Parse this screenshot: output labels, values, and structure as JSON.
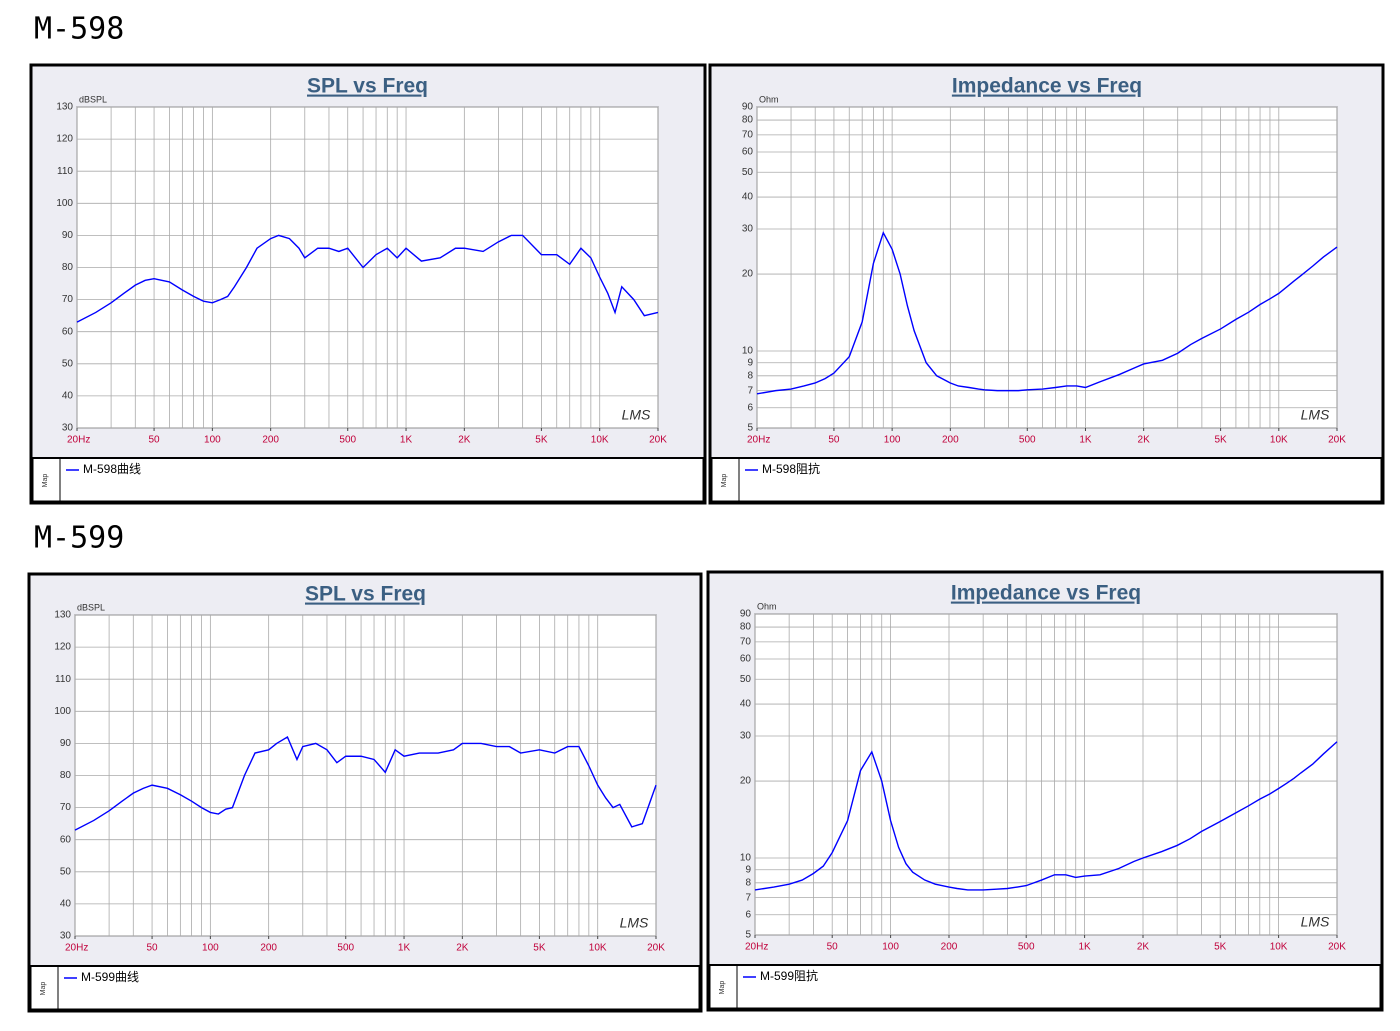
{
  "headings": [
    "M-598",
    "M-599"
  ],
  "chart_data": [
    {
      "type": "line",
      "title": "SPL vs Freq",
      "y_label": "dBSPL",
      "watermark": "LMS",
      "legend_side_label": "Map",
      "xscale": "log",
      "yscale": "linear",
      "grid": true,
      "xlim": [
        20,
        20000
      ],
      "ylim": [
        30,
        130
      ],
      "xticks": [
        {
          "value": 20,
          "label": "20Hz"
        },
        50,
        100,
        200,
        500,
        {
          "value": 1000,
          "label": "1K"
        },
        {
          "value": 2000,
          "label": "2K"
        },
        {
          "value": 5000,
          "label": "5K"
        },
        {
          "value": 10000,
          "label": "10K"
        },
        {
          "value": 20000,
          "label": "20K"
        }
      ],
      "xgrid": [
        20,
        30,
        40,
        50,
        60,
        70,
        80,
        90,
        100,
        200,
        300,
        400,
        500,
        600,
        700,
        800,
        900,
        1000,
        2000,
        3000,
        4000,
        5000,
        6000,
        7000,
        8000,
        9000,
        10000,
        20000
      ],
      "yticks": [
        30,
        40,
        50,
        60,
        70,
        80,
        90,
        100,
        110,
        120,
        130
      ],
      "x": [
        20,
        25,
        30,
        35,
        40,
        45,
        50,
        60,
        70,
        80,
        90,
        100,
        110,
        120,
        130,
        150,
        170,
        200,
        220,
        250,
        280,
        300,
        350,
        400,
        450,
        500,
        600,
        700,
        800,
        900,
        1000,
        1200,
        1500,
        1800,
        2000,
        2500,
        3000,
        3500,
        4000,
        5000,
        6000,
        7000,
        8000,
        9000,
        10000,
        11000,
        12000,
        13000,
        15000,
        17000,
        20000
      ],
      "series": [
        {
          "name": "M-598曲线",
          "color": "#0000ff",
          "values": [
            63,
            66,
            69,
            72,
            74.5,
            76,
            76.5,
            75.5,
            73,
            71,
            69.5,
            69,
            70,
            71,
            74,
            80,
            86,
            89,
            90,
            89,
            86,
            83,
            86,
            86,
            85,
            86,
            80,
            84,
            86,
            83,
            86,
            82,
            83,
            86,
            86,
            85,
            88,
            90,
            90,
            84,
            84,
            81,
            86,
            83,
            77,
            72,
            66,
            74,
            70,
            65,
            66
          ]
        }
      ]
    },
    {
      "type": "line",
      "title": "Impedance vs Freq",
      "y_label": "Ohm",
      "watermark": "LMS",
      "legend_side_label": "Map",
      "xscale": "log",
      "yscale": "log",
      "grid": true,
      "xlim": [
        20,
        20000
      ],
      "ylim": [
        5,
        90
      ],
      "xticks": [
        {
          "value": 20,
          "label": "20Hz"
        },
        50,
        100,
        200,
        500,
        {
          "value": 1000,
          "label": "1K"
        },
        {
          "value": 2000,
          "label": "2K"
        },
        {
          "value": 5000,
          "label": "5K"
        },
        {
          "value": 10000,
          "label": "10K"
        },
        {
          "value": 20000,
          "label": "20K"
        }
      ],
      "xgrid": [
        20,
        30,
        40,
        50,
        60,
        70,
        80,
        90,
        100,
        200,
        300,
        400,
        500,
        600,
        700,
        800,
        900,
        1000,
        2000,
        3000,
        4000,
        5000,
        6000,
        7000,
        8000,
        9000,
        10000,
        20000
      ],
      "yticks": [
        5,
        6,
        7,
        8,
        9,
        10,
        20,
        30,
        40,
        50,
        60,
        70,
        80,
        90
      ],
      "x": [
        20,
        25,
        30,
        35,
        40,
        45,
        50,
        60,
        70,
        80,
        90,
        100,
        110,
        120,
        130,
        150,
        170,
        200,
        220,
        250,
        280,
        300,
        350,
        400,
        450,
        500,
        600,
        700,
        800,
        900,
        1000,
        1200,
        1500,
        1800,
        2000,
        2500,
        3000,
        3500,
        4000,
        5000,
        6000,
        7000,
        8000,
        9000,
        10000,
        11000,
        12000,
        13000,
        15000,
        17000,
        20000
      ],
      "series": [
        {
          "name": "M-598阻抗",
          "color": "#0000ff",
          "values": [
            6.8,
            7,
            7.1,
            7.3,
            7.5,
            7.8,
            8.2,
            9.5,
            13,
            22,
            29,
            25,
            20,
            15,
            12,
            9,
            8,
            7.5,
            7.3,
            7.2,
            7.1,
            7.05,
            7,
            7,
            7,
            7.05,
            7.1,
            7.2,
            7.3,
            7.3,
            7.2,
            7.6,
            8.1,
            8.6,
            8.9,
            9.2,
            9.8,
            10.6,
            11.2,
            12.2,
            13.3,
            14.2,
            15.2,
            16,
            16.8,
            17.8,
            18.8,
            19.7,
            21.5,
            23.3,
            25.5
          ]
        }
      ]
    },
    {
      "type": "line",
      "title": "SPL vs Freq",
      "y_label": "dBSPL",
      "watermark": "LMS",
      "legend_side_label": "Map",
      "xscale": "log",
      "yscale": "linear",
      "grid": true,
      "xlim": [
        20,
        20000
      ],
      "ylim": [
        30,
        130
      ],
      "xticks": [
        {
          "value": 20,
          "label": "20Hz"
        },
        50,
        100,
        200,
        500,
        {
          "value": 1000,
          "label": "1K"
        },
        {
          "value": 2000,
          "label": "2K"
        },
        {
          "value": 5000,
          "label": "5K"
        },
        {
          "value": 10000,
          "label": "10K"
        },
        {
          "value": 20000,
          "label": "20K"
        }
      ],
      "xgrid": [
        20,
        30,
        40,
        50,
        60,
        70,
        80,
        90,
        100,
        200,
        300,
        400,
        500,
        600,
        700,
        800,
        900,
        1000,
        2000,
        3000,
        4000,
        5000,
        6000,
        7000,
        8000,
        9000,
        10000,
        20000
      ],
      "yticks": [
        30,
        40,
        50,
        60,
        70,
        80,
        90,
        100,
        110,
        120,
        130
      ],
      "x": [
        20,
        25,
        30,
        35,
        40,
        45,
        50,
        60,
        70,
        80,
        90,
        100,
        110,
        120,
        130,
        150,
        170,
        200,
        220,
        250,
        280,
        300,
        350,
        400,
        450,
        500,
        600,
        700,
        800,
        900,
        1000,
        1200,
        1500,
        1800,
        2000,
        2500,
        3000,
        3500,
        4000,
        5000,
        6000,
        7000,
        8000,
        9000,
        10000,
        11000,
        12000,
        13000,
        15000,
        17000,
        20000
      ],
      "series": [
        {
          "name": "M-599曲线",
          "color": "#0000ff",
          "values": [
            63,
            66,
            69,
            72,
            74.5,
            76,
            77,
            76,
            74,
            72,
            70,
            68.5,
            68,
            69.5,
            70,
            80,
            87,
            88,
            90,
            92,
            85,
            89,
            90,
            88,
            84,
            86,
            86,
            85,
            81,
            88,
            86,
            87,
            87,
            88,
            90,
            90,
            89,
            89,
            87,
            88,
            87,
            89,
            89,
            83,
            77,
            73,
            70,
            71,
            64,
            65,
            77
          ]
        }
      ]
    },
    {
      "type": "line",
      "title": "Impedance vs Freq",
      "y_label": "Ohm",
      "watermark": "LMS",
      "legend_side_label": "Map",
      "xscale": "log",
      "yscale": "log",
      "grid": true,
      "xlim": [
        20,
        20000
      ],
      "ylim": [
        5,
        90
      ],
      "xticks": [
        {
          "value": 20,
          "label": "20Hz"
        },
        50,
        100,
        200,
        500,
        {
          "value": 1000,
          "label": "1K"
        },
        {
          "value": 2000,
          "label": "2K"
        },
        {
          "value": 5000,
          "label": "5K"
        },
        {
          "value": 10000,
          "label": "10K"
        },
        {
          "value": 20000,
          "label": "20K"
        }
      ],
      "xgrid": [
        20,
        30,
        40,
        50,
        60,
        70,
        80,
        90,
        100,
        200,
        300,
        400,
        500,
        600,
        700,
        800,
        900,
        1000,
        2000,
        3000,
        4000,
        5000,
        6000,
        7000,
        8000,
        9000,
        10000,
        20000
      ],
      "yticks": [
        5,
        6,
        7,
        8,
        9,
        10,
        20,
        30,
        40,
        50,
        60,
        70,
        80,
        90
      ],
      "x": [
        20,
        25,
        30,
        35,
        40,
        45,
        50,
        60,
        70,
        80,
        90,
        100,
        110,
        120,
        130,
        150,
        170,
        200,
        220,
        250,
        280,
        300,
        350,
        400,
        450,
        500,
        600,
        700,
        800,
        900,
        1000,
        1200,
        1500,
        1800,
        2000,
        2500,
        3000,
        3500,
        4000,
        5000,
        6000,
        7000,
        8000,
        9000,
        10000,
        11000,
        12000,
        13000,
        15000,
        17000,
        20000
      ],
      "series": [
        {
          "name": "M-599阻抗",
          "color": "#0000ff",
          "values": [
            7.5,
            7.7,
            7.9,
            8.2,
            8.7,
            9.3,
            10.5,
            14,
            22,
            26,
            20,
            14,
            11,
            9.5,
            8.8,
            8.2,
            7.9,
            7.7,
            7.6,
            7.5,
            7.5,
            7.5,
            7.55,
            7.6,
            7.7,
            7.8,
            8.2,
            8.6,
            8.6,
            8.4,
            8.5,
            8.6,
            9.1,
            9.7,
            10,
            10.6,
            11.2,
            11.9,
            12.7,
            13.9,
            15,
            16,
            17,
            17.8,
            18.7,
            19.6,
            20.5,
            21.5,
            23.3,
            25.5,
            28.5
          ]
        }
      ]
    }
  ]
}
